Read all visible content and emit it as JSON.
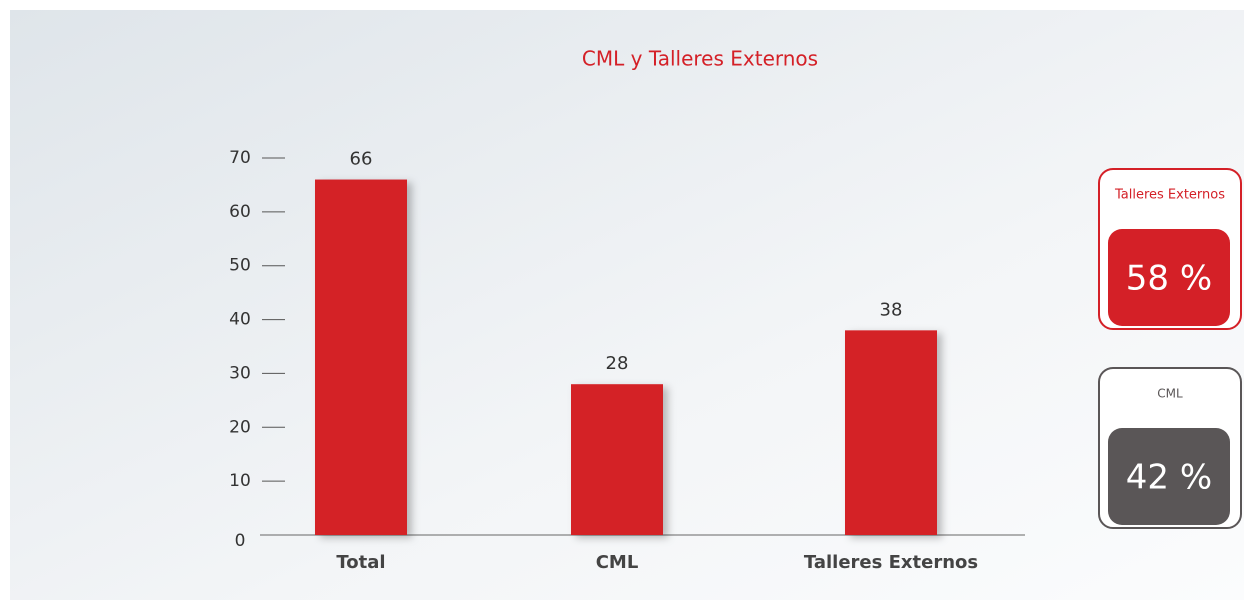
{
  "chart_data": {
    "type": "bar",
    "title": "CML y Talleres Externos",
    "categories": [
      "Total",
      "CML",
      "Talleres Externos"
    ],
    "values": [
      66,
      28,
      38
    ],
    "color": "#d42027",
    "ylim": [
      0,
      70
    ],
    "yticks": [
      0,
      10,
      20,
      30,
      40,
      50,
      60,
      70
    ]
  },
  "cards": [
    {
      "title": "Talleres Externos",
      "value": "58 %",
      "color": "#d42027"
    },
    {
      "title": "CML",
      "value": "42 %",
      "color": "#5a5657"
    }
  ]
}
